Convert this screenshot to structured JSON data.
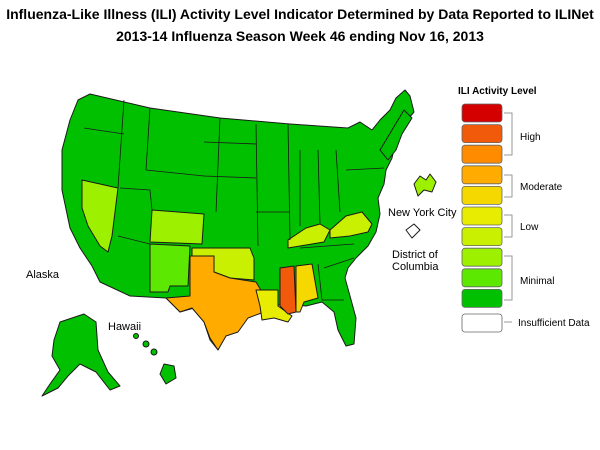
{
  "title_line1": "Influenza-Like Illness (ILI) Activity Level Indicator Determined by Data Reported to ILINet",
  "title_line2": "2013-14  Influenza Season Week  46 ending Nov 16, 2013",
  "map_labels": {
    "alaska": "Alaska",
    "hawaii": "Hawaii",
    "nyc": "New York City",
    "dc_line1": "District of",
    "dc_line2": "Columbia"
  },
  "legend": {
    "title": "ILI Activity Level",
    "levels": [
      {
        "level": 10,
        "color": "#d40000"
      },
      {
        "level": 9,
        "color": "#f05a0a"
      },
      {
        "level": 8,
        "color": "#ff8c00"
      },
      {
        "level": 7,
        "color": "#ffab00"
      },
      {
        "level": 6,
        "color": "#f5d800"
      },
      {
        "level": 5,
        "color": "#e8ec00"
      },
      {
        "level": 4,
        "color": "#c8f000"
      },
      {
        "level": 3,
        "color": "#9cf000"
      },
      {
        "level": 2,
        "color": "#5ce800"
      },
      {
        "level": 1,
        "color": "#00c000"
      }
    ],
    "groups": {
      "high": "High",
      "moderate": "Moderate",
      "low": "Low",
      "minimal": "Minimal",
      "insufficient": "Insufficient Data"
    },
    "insufficient_color": "#ffffff"
  },
  "state_levels": {
    "base": 1,
    "NV": 3,
    "CO": 3,
    "NM": 2,
    "OK": 4,
    "TX": 7,
    "LA": 5,
    "MS": 9,
    "AL": 6,
    "KY": 4,
    "VA": 4,
    "NYC": 3,
    "DC": "insufficient"
  }
}
